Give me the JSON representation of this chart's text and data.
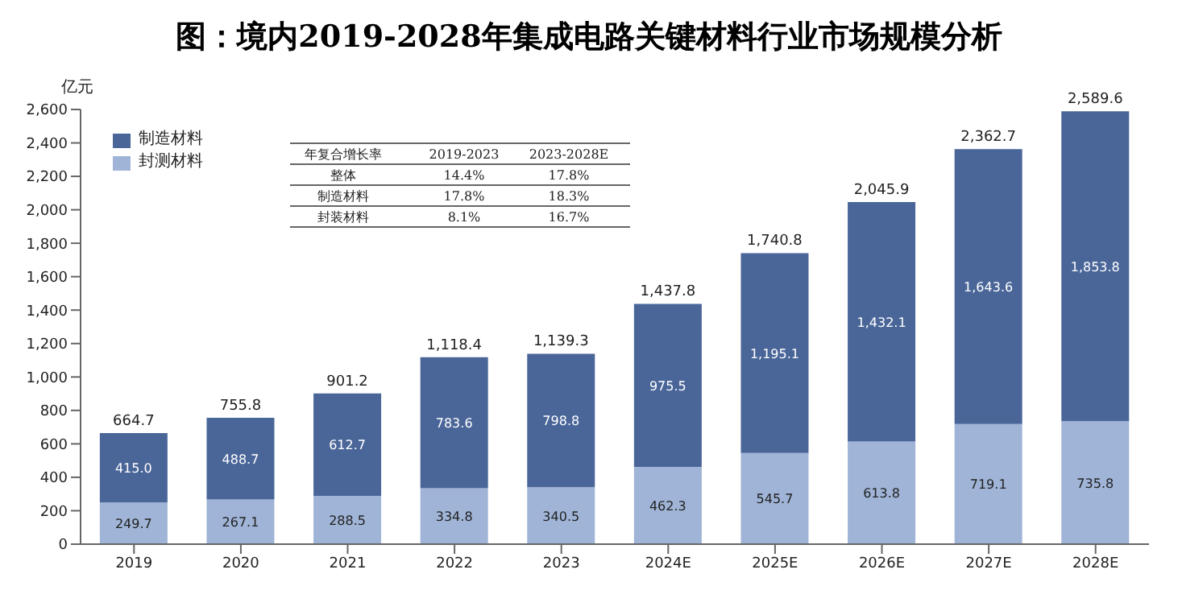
{
  "chart_data": {
    "type": "bar",
    "title": "图：境内2019-2028年集成电路关键材料行业市场规模分析",
    "ylabel": "亿元",
    "categories": [
      "2019",
      "2020",
      "2021",
      "2022",
      "2023",
      "2024E",
      "2025E",
      "2026E",
      "2027E",
      "2028E"
    ],
    "stacked": true,
    "series": [
      {
        "name": "封测材料",
        "color": "#9fb4d6",
        "values": [
          249.7,
          267.1,
          288.5,
          334.8,
          340.5,
          462.3,
          545.7,
          613.8,
          719.1,
          735.8
        ],
        "value_labels": [
          "249.7",
          "267.1",
          "288.5",
          "334.8",
          "340.5",
          "462.3",
          "545.7",
          "613.8",
          "719.1",
          "735.8"
        ]
      },
      {
        "name": "制造材料",
        "color": "#4a6699",
        "values": [
          415,
          488.7,
          612.7,
          783.6,
          798.8,
          975.5,
          1195.1,
          1432.1,
          1643.6,
          1853.8
        ],
        "value_labels": [
          "415.0",
          "488.7",
          "612.7",
          "783.6",
          "798.8",
          "975.5",
          "1,195.1",
          "1,432.1",
          "1,643.6",
          "1,853.8"
        ]
      }
    ],
    "totals": [
      "664.7",
      "755.8",
      "901.2",
      "1,118.4",
      "1,139.3",
      "1,437.8",
      "1,740.8",
      "2,045.9",
      "2,362.7",
      "2,589.6"
    ],
    "ylim": [
      0,
      2600
    ],
    "yticks": [
      0,
      200,
      400,
      600,
      800,
      {
        "value": 1000,
        "label": "1,000"
      },
      {
        "value": 1200,
        "label": "1,200"
      },
      {
        "value": 1400,
        "label": "1,400"
      },
      {
        "value": 1600,
        "label": "1,600"
      },
      {
        "value": 1800,
        "label": "1,800"
      },
      {
        "value": 2000,
        "label": "2,000"
      },
      {
        "value": 2200,
        "label": "2,200"
      },
      {
        "value": 2400,
        "label": "2,400"
      },
      {
        "value": 2600,
        "label": "2,600"
      }
    ],
    "legend": "top left",
    "annotations": [
      "年复合增长率",
      "2019-2023",
      "2023-2028E",
      "整体",
      "14.4%",
      "17.8%",
      "制造材料",
      "17.8%",
      "18.3%",
      "封装材料",
      "8.1%",
      "16.7%"
    ]
  }
}
